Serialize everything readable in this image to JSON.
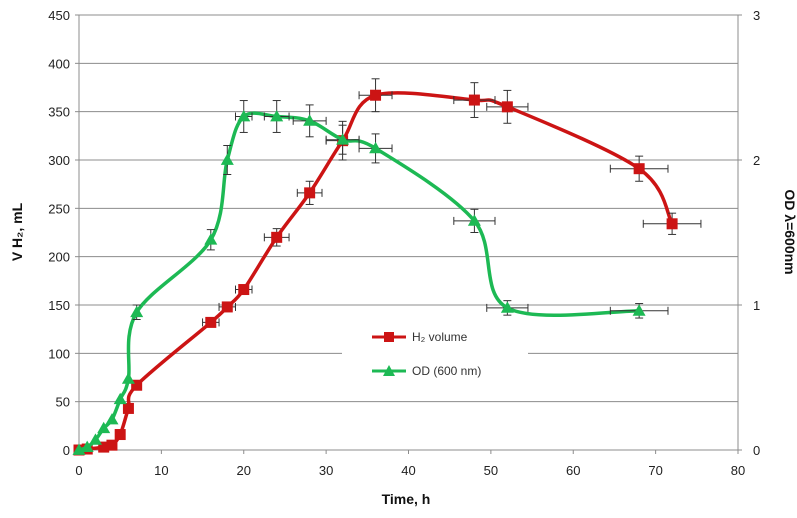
{
  "chart_data": {
    "type": "line",
    "title": "",
    "xlabel": "Time, h",
    "ylabel": "V H₂, mL",
    "y2label": "OD λ=600nm",
    "xlim": [
      0,
      80
    ],
    "ylim": [
      0,
      450
    ],
    "y2lim": [
      0,
      3
    ],
    "xticks": [
      "0",
      "10",
      "20",
      "30",
      "40",
      "50",
      "60",
      "70",
      "80"
    ],
    "yticks": [
      "0",
      "50",
      "100",
      "150",
      "200",
      "250",
      "300",
      "350",
      "400",
      "450"
    ],
    "y2ticks": [
      "0",
      "1",
      "2",
      "3"
    ],
    "grid": true,
    "legend_position": "center-right",
    "series": [
      {
        "name": "H₂ volume",
        "axis": "left",
        "color": "#cc1414",
        "marker": "square",
        "x": [
          0,
          1,
          3,
          4,
          5,
          6,
          7,
          16,
          18,
          20,
          24,
          28,
          32,
          36,
          48,
          52,
          68,
          72
        ],
        "y": [
          0,
          1,
          3,
          5,
          16,
          43,
          67,
          132,
          148,
          166,
          220,
          266,
          320,
          367,
          362,
          355,
          291,
          234
        ],
        "yerr": [
          0,
          0,
          0,
          0,
          0,
          0,
          0,
          0,
          0,
          0,
          9,
          12,
          20,
          17,
          18,
          17,
          13,
          11
        ],
        "xerr": [
          0,
          0,
          0,
          0,
          0,
          0,
          0,
          1,
          1,
          1,
          1.5,
          1.5,
          2,
          2,
          2.5,
          2.5,
          3.5,
          3.5
        ]
      },
      {
        "name": "OD (600 nm)",
        "axis": "right",
        "color": "#1db954",
        "marker": "triangle",
        "x": [
          0,
          1,
          2,
          3,
          4,
          5,
          6,
          7,
          16,
          18,
          20,
          24,
          28,
          32,
          36,
          48,
          52,
          68
        ],
        "y": [
          0,
          0.02,
          0.07,
          0.15,
          0.21,
          0.35,
          0.49,
          0.95,
          1.45,
          2.0,
          2.3,
          2.3,
          2.27,
          2.14,
          2.08,
          1.58,
          0.98,
          0.96
        ],
        "yerr": [
          0,
          0,
          0,
          0,
          0,
          0,
          0,
          0.05,
          0.07,
          0.1,
          0.11,
          0.11,
          0.11,
          0.1,
          0.1,
          0.08,
          0.05,
          0.05
        ],
        "xerr": [
          0,
          0,
          0,
          0,
          0,
          0,
          0,
          0,
          0,
          0,
          1,
          1.5,
          2,
          2,
          2,
          2.5,
          2.5,
          3.5
        ]
      }
    ]
  }
}
